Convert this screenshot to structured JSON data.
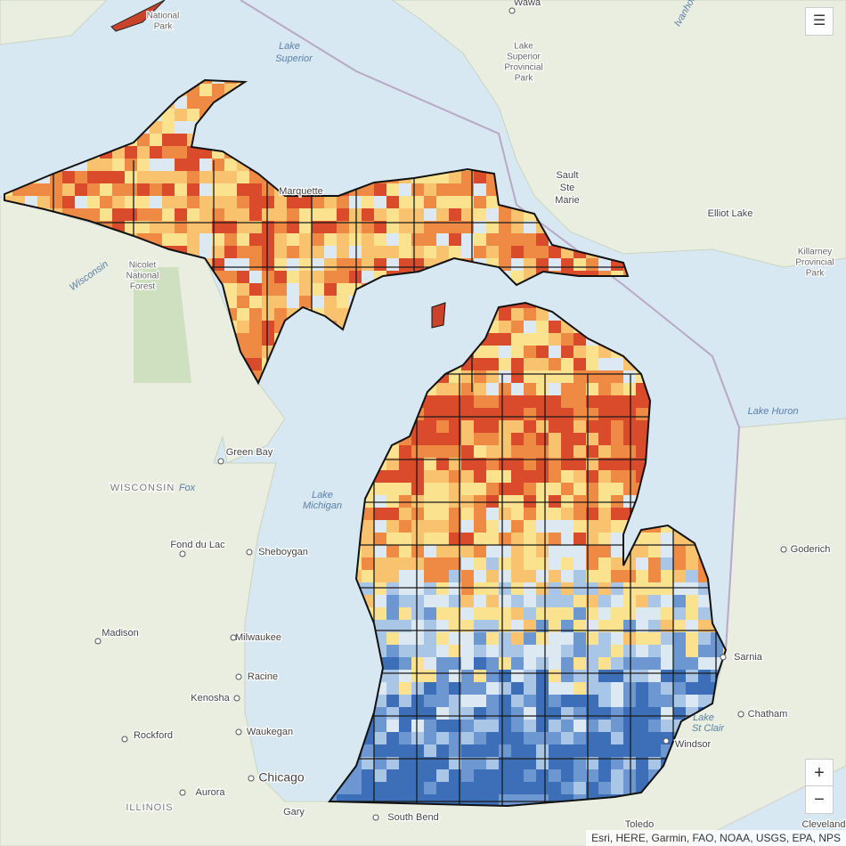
{
  "labels": [
    "Lake",
    "Superior",
    "Wawa",
    "Lake",
    "Superior",
    "Provincial",
    "Park",
    "National",
    "Park",
    "Sault",
    "Ste",
    "Marie",
    "Elliot Lake",
    "Killarney",
    "Provincial",
    "Park",
    "Marquette",
    "Nicolet",
    "National",
    "Forest",
    "Wisconsin",
    "Lake Huron",
    "Green Bay",
    "WISCONSIN",
    "Fox",
    "Lake",
    "Michigan",
    "Fond du Lac",
    "Sheboygan",
    "Goderich",
    "Madison",
    "Milwaukee",
    "Racine",
    "Kenosha",
    "Sarnia",
    "Chatham",
    "Lake",
    "St Clair",
    "Windsor",
    "Waukegan",
    "Rockford",
    "Chicago",
    "Aurora",
    "ILLINOIS",
    "Gary",
    "South Bend",
    "Toledo",
    "Cleveland",
    "Ivanhoe"
  ],
  "attribution": "Esri, HERE, Garmin, FAO, NOAA, USGS, EPA, NPS",
  "controls": {
    "zoom_in": "+",
    "zoom_out": "−"
  }
}
